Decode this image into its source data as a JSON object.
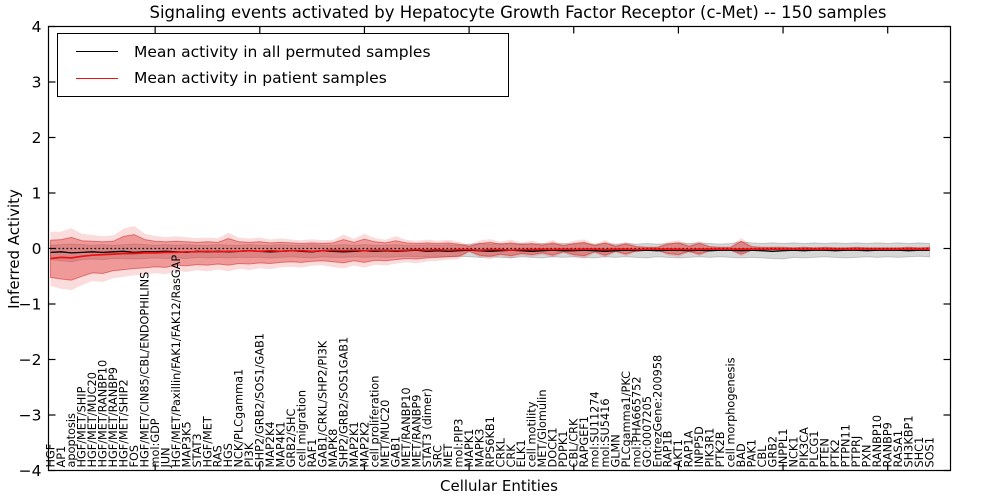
{
  "figure": {
    "title": "Signaling events activated by Hepatocyte Growth Factor Receptor (c-Met) -- 150 samples",
    "xlabel": "Cellular Entities",
    "ylabel": "Inferred Activity"
  },
  "legend": {
    "items": [
      {
        "label": "Mean activity in all permuted samples",
        "color": "#000000"
      },
      {
        "label": "Mean activity in patient samples",
        "color": "#ee1111"
      }
    ]
  },
  "chart_data": {
    "type": "line",
    "title": "Signaling events activated by Hepatocyte Growth Factor Receptor (c-Met) -- 150 samples",
    "xlabel": "Cellular Entities",
    "ylabel": "Inferred Activity",
    "ylim": [
      -4,
      4
    ],
    "ytick_labels": [
      "−4",
      "−3",
      "−2",
      "−1",
      "0",
      "1",
      "2",
      "3",
      "4"
    ],
    "ytick_values": [
      -4,
      -3,
      -2,
      -1,
      0,
      1,
      2,
      3,
      4
    ],
    "xtick_every": 10,
    "grid": false,
    "legend_position": "upper left",
    "baseline_dotted": 0,
    "colors": {
      "permuted_line": "#000000",
      "patient_line": "#ee1111",
      "patient_band_fill": "rgba(225,60,60,0.42)",
      "patient_band_outer_fill": "rgba(225,60,60,0.18)",
      "patient_band_edge": "rgba(205,45,45,0.55)",
      "permuted_band_fill": "rgba(130,130,130,0.32)",
      "permuted_band_edge": "rgba(90,90,90,0.28)"
    },
    "categories": [
      "HGF",
      "AP1",
      "apoptosis",
      "HGF/MET/SHIP",
      "HGF/MET/MUC20",
      "HGF/MET/RANBP10",
      "HGF/MET/RANBP9",
      "HGF/MET/SHIP2",
      "FOS",
      "HGF/MET/CIN85/CBL/ENDOPHILINS",
      "mol:GDP",
      "JUN",
      "HGF/MET/Paxillin/FAK1/FAK12/RasGAP",
      "MAP3K5",
      "STAT3",
      "HGF/MET",
      "RAS",
      "HGS",
      "NCK/PLCgamma1",
      "PI3K",
      "SHP2/GRB2/SOS1/GAB1",
      "MAP2K4",
      "MAP4K1",
      "GRB2/SHC",
      "cell migration",
      "RAF1",
      "GAB1/CRKL/SHP2/PI3K",
      "MAPK8",
      "SHP2/GRB2/SOS1GAB1",
      "MAP2K1",
      "MAP2K2",
      "cell proliferation",
      "MET/MUC20",
      "GAB1",
      "MET/RANBP10",
      "MET/RANBP9",
      "STAT3 (dimer)",
      "SRC",
      "MET",
      "mol:PIP3",
      "MAPK1",
      "MAPK3",
      "RPS6KB1",
      "CRKL",
      "CRK",
      "ELK1",
      "cell motility",
      "MET/Glomulin",
      "DOCK1",
      "PDPK1",
      "CBL/CRK",
      "RAPGEF1",
      "mol:SU11274",
      "mol:SU5416",
      "GLMN",
      "PLCgamma1/PKC",
      "mol:PHA665752",
      "GO:0007205",
      "EntrezGene:200958",
      "RAP1B",
      "AKT1",
      "RAP1A",
      "INPP5D",
      "PIK3R1",
      "PTK2B",
      "cell morphogenesis",
      "BAD",
      "PAK1",
      "CBL",
      "GRB2",
      "INPPL1",
      "NCK1",
      "PIK3CA",
      "PLCG1",
      "PTEN",
      "PTK2",
      "PTPN11",
      "PTPRJ",
      "PXN",
      "RANBP10",
      "RANBP9",
      "RASA1",
      "SH3KBP1",
      "SHC1",
      "SOS1"
    ],
    "series": [
      {
        "name": "Mean activity in all permuted samples",
        "values": [
          -0.07,
          -0.06,
          -0.08,
          -0.07,
          -0.06,
          -0.07,
          -0.06,
          -0.05,
          -0.07,
          -0.06,
          -0.06,
          -0.05,
          -0.06,
          -0.07,
          -0.05,
          -0.06,
          -0.05,
          -0.06,
          -0.05,
          -0.04,
          -0.05,
          -0.06,
          -0.05,
          -0.04,
          -0.05,
          -0.06,
          -0.04,
          -0.05,
          -0.06,
          -0.05,
          -0.04,
          -0.05,
          -0.04,
          -0.05,
          -0.04,
          -0.03,
          -0.05,
          -0.04,
          -0.05,
          -0.04,
          -0.03,
          -0.04,
          -0.05,
          -0.04,
          -0.03,
          -0.04,
          -0.05,
          -0.04,
          -0.03,
          -0.04,
          -0.04,
          -0.03,
          -0.04,
          -0.05,
          -0.04,
          -0.03,
          -0.04,
          -0.03,
          -0.04,
          -0.03,
          -0.03,
          -0.04,
          -0.03,
          -0.04,
          -0.03,
          -0.03,
          -0.04,
          -0.03,
          -0.04,
          -0.05,
          -0.04,
          -0.03,
          -0.04,
          -0.03,
          -0.03,
          -0.04,
          -0.03,
          -0.03,
          -0.04,
          -0.03,
          -0.03,
          -0.03,
          -0.04,
          -0.03,
          -0.03
        ]
      },
      {
        "name": "Mean activity in patient samples",
        "values": [
          -0.18,
          -0.16,
          -0.17,
          -0.14,
          -0.12,
          -0.11,
          -0.1,
          -0.09,
          -0.09,
          -0.08,
          -0.08,
          -0.07,
          -0.07,
          -0.06,
          -0.06,
          -0.05,
          -0.06,
          -0.05,
          -0.05,
          -0.04,
          -0.05,
          -0.04,
          -0.05,
          -0.04,
          -0.04,
          -0.05,
          -0.04,
          -0.03,
          -0.04,
          -0.03,
          -0.04,
          -0.03,
          -0.03,
          -0.04,
          -0.03,
          -0.02,
          -0.03,
          -0.02,
          -0.03,
          -0.02,
          -0.02,
          -0.03,
          -0.02,
          -0.02,
          -0.03,
          -0.02,
          -0.02,
          -0.01,
          -0.02,
          -0.01,
          -0.02,
          -0.01,
          -0.01,
          -0.02,
          -0.01,
          -0.01,
          -0.02,
          -0.01,
          -0.01,
          -0.01,
          -0.01,
          -0.02,
          -0.01,
          -0.01,
          -0.01,
          -0.01,
          -0.01,
          -0.01,
          -0.01,
          -0.01,
          -0.01,
          -0.01,
          -0.01,
          -0.01,
          -0.01,
          -0.01,
          -0.01,
          -0.01,
          -0.01,
          -0.01,
          -0.01,
          -0.01,
          -0.01,
          -0.01,
          -0.01
        ]
      }
    ],
    "bands": {
      "patient_upper": [
        0.15,
        0.16,
        0.2,
        0.14,
        0.13,
        0.12,
        0.13,
        0.22,
        0.25,
        0.16,
        0.13,
        0.12,
        0.13,
        0.12,
        0.11,
        0.12,
        0.11,
        0.18,
        0.12,
        0.11,
        0.12,
        0.1,
        0.11,
        0.1,
        0.09,
        0.1,
        0.09,
        0.1,
        0.16,
        0.11,
        0.17,
        0.12,
        0.1,
        0.14,
        0.1,
        0.09,
        0.1,
        0.09,
        0.1,
        0.08,
        0.04,
        0.09,
        0.11,
        0.08,
        0.1,
        0.07,
        0.09,
        0.06,
        0.1,
        0.05,
        0.09,
        0.11,
        0.05,
        0.1,
        0.04,
        0.08,
        0.03,
        0.02,
        0.02,
        0.08,
        0.1,
        0.04,
        0.09,
        0.03,
        0.02,
        0.02,
        0.13,
        0.03,
        0.02,
        0.02,
        0.02,
        0.01,
        0.02,
        0.01,
        0.02,
        0.01,
        0.01,
        0.02,
        0.01,
        0.01,
        0.01,
        0.01,
        0.02,
        0.01,
        0.02
      ],
      "patient_lower": [
        -0.52,
        -0.55,
        -0.57,
        -0.5,
        -0.44,
        -0.45,
        -0.4,
        -0.38,
        -0.36,
        -0.35,
        -0.33,
        -0.34,
        -0.3,
        -0.31,
        -0.29,
        -0.3,
        -0.28,
        -0.3,
        -0.27,
        -0.28,
        -0.26,
        -0.27,
        -0.25,
        -0.24,
        -0.25,
        -0.23,
        -0.22,
        -0.24,
        -0.26,
        -0.22,
        -0.25,
        -0.21,
        -0.22,
        -0.2,
        -0.18,
        -0.19,
        -0.17,
        -0.16,
        -0.15,
        -0.14,
        -0.05,
        -0.12,
        -0.14,
        -0.1,
        -0.13,
        -0.09,
        -0.11,
        -0.08,
        -0.12,
        -0.06,
        -0.11,
        -0.13,
        -0.06,
        -0.12,
        -0.05,
        -0.1,
        -0.04,
        -0.03,
        -0.03,
        -0.09,
        -0.11,
        -0.05,
        -0.1,
        -0.04,
        -0.03,
        -0.03,
        -0.1,
        -0.03,
        -0.02,
        -0.02,
        -0.02,
        -0.02,
        -0.02,
        -0.02,
        -0.02,
        -0.02,
        -0.02,
        -0.02,
        -0.02,
        -0.02,
        -0.02,
        -0.02,
        -0.02,
        -0.02,
        -0.03
      ],
      "permuted_upper": [
        0.06,
        0.07,
        0.08,
        0.07,
        0.06,
        0.07,
        0.06,
        0.07,
        0.08,
        0.07,
        0.06,
        0.07,
        0.06,
        0.07,
        0.06,
        0.06,
        0.07,
        0.06,
        0.06,
        0.07,
        0.06,
        0.06,
        0.07,
        0.06,
        0.06,
        0.07,
        0.06,
        0.06,
        0.07,
        0.06,
        0.07,
        0.06,
        0.06,
        0.07,
        0.06,
        0.06,
        0.07,
        0.06,
        0.07,
        0.06,
        0.08,
        0.09,
        0.08,
        0.09,
        0.08,
        0.09,
        0.08,
        0.09,
        0.08,
        0.09,
        0.08,
        0.09,
        0.08,
        0.09,
        0.08,
        0.09,
        0.08,
        0.09,
        0.08,
        0.09,
        0.1,
        0.09,
        0.1,
        0.09,
        0.08,
        0.09,
        0.12,
        0.1,
        0.09,
        0.1,
        0.09,
        0.1,
        0.09,
        0.1,
        0.09,
        0.1,
        0.09,
        0.1,
        0.09,
        0.1,
        0.09,
        0.1,
        0.09,
        0.1,
        0.09
      ],
      "permuted_lower": [
        -0.2,
        -0.22,
        -0.24,
        -0.2,
        -0.19,
        -0.2,
        -0.18,
        -0.18,
        -0.19,
        -0.18,
        -0.17,
        -0.18,
        -0.17,
        -0.18,
        -0.16,
        -0.17,
        -0.16,
        -0.17,
        -0.16,
        -0.16,
        -0.16,
        -0.17,
        -0.16,
        -0.15,
        -0.16,
        -0.17,
        -0.15,
        -0.16,
        -0.16,
        -0.15,
        -0.16,
        -0.15,
        -0.16,
        -0.15,
        -0.14,
        -0.15,
        -0.15,
        -0.14,
        -0.15,
        -0.14,
        -0.15,
        -0.16,
        -0.15,
        -0.16,
        -0.17,
        -0.15,
        -0.16,
        -0.17,
        -0.15,
        -0.16,
        -0.15,
        -0.16,
        -0.17,
        -0.15,
        -0.16,
        -0.15,
        -0.16,
        -0.17,
        -0.15,
        -0.16,
        -0.17,
        -0.16,
        -0.15,
        -0.16,
        -0.15,
        -0.16,
        -0.17,
        -0.16,
        -0.17,
        -0.18,
        -0.19,
        -0.16,
        -0.17,
        -0.16,
        -0.15,
        -0.16,
        -0.17,
        -0.16,
        -0.15,
        -0.16,
        -0.15,
        -0.16,
        -0.15,
        -0.14,
        -0.15
      ]
    }
  }
}
